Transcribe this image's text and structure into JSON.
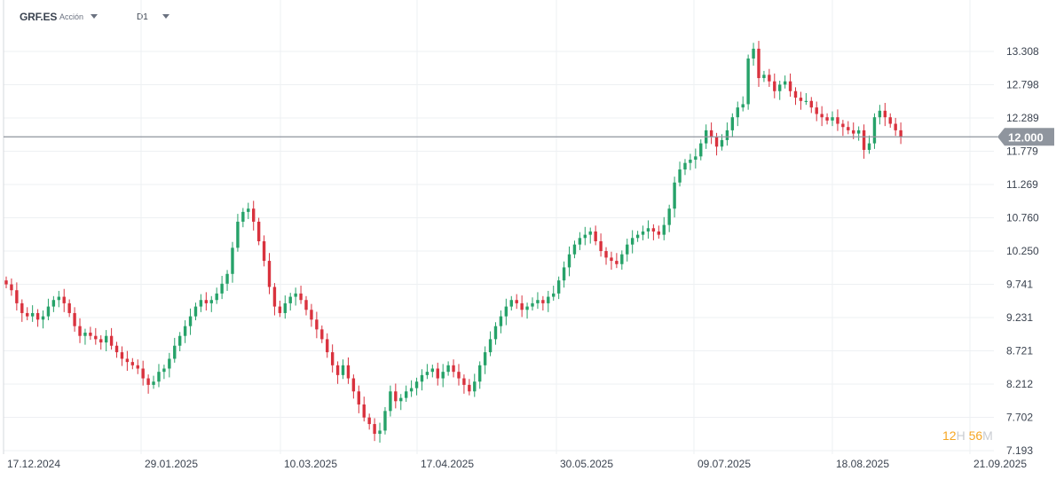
{
  "header": {
    "symbol": "GRF.ES",
    "asset_type": "Acción",
    "timeframe": "D1"
  },
  "countdown": {
    "hours": "12",
    "hours_unit": "H",
    "minutes": "56",
    "minutes_unit": "M"
  },
  "colors": {
    "up": "#26a269",
    "down": "#d9323e",
    "grid": "#eef0f3",
    "price_line": "#8f959e",
    "price_tag_bg": "#8f959e",
    "price_tag_text": "#ffffff"
  },
  "chart_data": {
    "type": "candlestick",
    "y_ticks": [
      "13.308",
      "12.798",
      "12.289",
      "11.779",
      "11.269",
      "10.760",
      "10.250",
      "9.741",
      "9.231",
      "8.721",
      "8.212",
      "7.702",
      "7.193"
    ],
    "x_ticks": [
      "17.12.2024",
      "29.01.2025",
      "10.03.2025",
      "17.04.2025",
      "30.05.2025",
      "09.07.2025",
      "18.08.2025",
      "21.09.2025"
    ],
    "ylim": [
      7.193,
      13.308
    ],
    "current_price": "12.000",
    "grid": true,
    "candles_close": [
      9.74,
      9.65,
      9.45,
      9.3,
      9.25,
      9.3,
      9.2,
      9.25,
      9.4,
      9.5,
      9.55,
      9.45,
      9.3,
      9.1,
      8.95,
      9.0,
      8.95,
      8.9,
      8.85,
      8.95,
      8.8,
      8.7,
      8.6,
      8.55,
      8.5,
      8.45,
      8.3,
      8.2,
      8.25,
      8.4,
      8.45,
      8.6,
      8.8,
      8.95,
      9.1,
      9.25,
      9.4,
      9.5,
      9.45,
      9.5,
      9.6,
      9.75,
      9.9,
      10.3,
      10.7,
      10.85,
      10.9,
      10.7,
      10.4,
      10.1,
      9.7,
      9.4,
      9.3,
      9.45,
      9.55,
      9.6,
      9.5,
      9.35,
      9.2,
      9.05,
      8.9,
      8.7,
      8.5,
      8.35,
      8.5,
      8.3,
      8.1,
      7.9,
      7.7,
      7.6,
      7.45,
      7.5,
      7.8,
      8.1,
      7.95,
      8.0,
      8.1,
      8.15,
      8.25,
      8.35,
      8.4,
      8.45,
      8.3,
      8.4,
      8.5,
      8.4,
      8.3,
      8.2,
      8.1,
      8.25,
      8.5,
      8.7,
      8.9,
      9.1,
      9.25,
      9.4,
      9.5,
      9.45,
      9.35,
      9.4,
      9.45,
      9.5,
      9.45,
      9.55,
      9.6,
      9.8,
      10.0,
      10.2,
      10.35,
      10.45,
      10.5,
      10.55,
      10.4,
      10.25,
      10.15,
      10.1,
      10.05,
      10.2,
      10.35,
      10.45,
      10.5,
      10.55,
      10.6,
      10.55,
      10.5,
      10.65,
      10.9,
      11.3,
      11.5,
      11.6,
      11.65,
      11.7,
      11.9,
      12.1,
      12.0,
      11.85,
      11.95,
      12.1,
      12.3,
      12.45,
      12.5,
      13.2,
      13.35,
      12.9,
      12.95,
      12.85,
      12.7,
      12.8,
      12.85,
      12.7,
      12.6,
      12.55,
      12.55,
      12.45,
      12.35,
      12.3,
      12.25,
      12.3,
      12.2,
      12.15,
      12.1,
      12.05,
      12.1,
      11.8,
      11.9,
      12.3,
      12.4,
      12.3,
      12.2,
      12.1,
      12.0
    ]
  }
}
